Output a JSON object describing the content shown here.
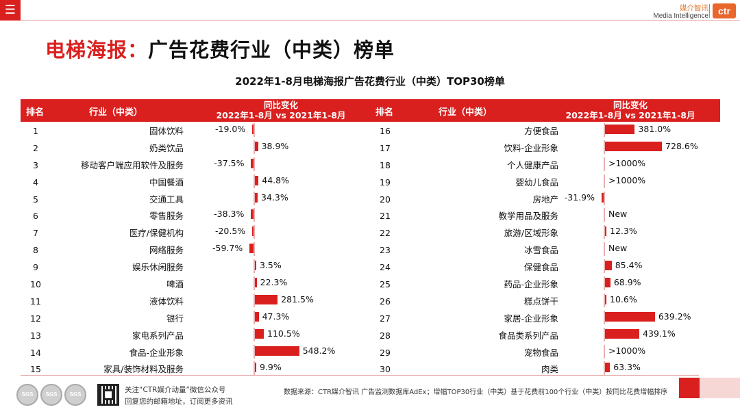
{
  "header": {
    "menu_icon": "hamburger-icon",
    "brand_cn": "媒介智讯",
    "brand_en": "Media Intelligence",
    "logo_text": "ctr",
    "accent": "#d9201f"
  },
  "title_red": "电梯海报：",
  "title_black": "广告花费行业（中类）榜单",
  "subtitle": "2022年1-8月电梯海报广告花费行业（中类）TOP30榜单",
  "columns": {
    "rank": "排名",
    "industry": "行业（中类）",
    "change_line1": "同比变化",
    "change_line2": "2022年1-8月 vs 2021年1-8月"
  },
  "chart_data": {
    "type": "bar",
    "title": "2022年1-8月电梯海报广告花费行业（中类）TOP30榜单",
    "xlabel": "同比变化 2022年1-8月 vs 2021年1-8月",
    "ylabel": "行业（中类）",
    "unit": "%",
    "left": [
      {
        "rank": "1",
        "industry": "固体饮料",
        "value": -19.0,
        "label": "-19.0%"
      },
      {
        "rank": "2",
        "industry": "奶类饮品",
        "value": 38.9,
        "label": "38.9%"
      },
      {
        "rank": "3",
        "industry": "移动客户端应用软件及服务",
        "value": -37.5,
        "label": "-37.5%"
      },
      {
        "rank": "4",
        "industry": "中国餐酒",
        "value": 44.8,
        "label": "44.8%"
      },
      {
        "rank": "5",
        "industry": "交通工具",
        "value": 34.3,
        "label": "34.3%"
      },
      {
        "rank": "6",
        "industry": "零售服务",
        "value": -38.3,
        "label": "-38.3%"
      },
      {
        "rank": "7",
        "industry": "医疗/保健机构",
        "value": -20.5,
        "label": "-20.5%"
      },
      {
        "rank": "8",
        "industry": "网络服务",
        "value": -59.7,
        "label": "-59.7%"
      },
      {
        "rank": "9",
        "industry": "娱乐休闲服务",
        "value": 3.5,
        "label": "3.5%"
      },
      {
        "rank": "10",
        "industry": "啤酒",
        "value": 22.3,
        "label": "22.3%"
      },
      {
        "rank": "11",
        "industry": "液体饮料",
        "value": 281.5,
        "label": "281.5%"
      },
      {
        "rank": "12",
        "industry": "银行",
        "value": 47.3,
        "label": "47.3%"
      },
      {
        "rank": "13",
        "industry": "家电系列产品",
        "value": 110.5,
        "label": "110.5%"
      },
      {
        "rank": "14",
        "industry": "食品-企业形象",
        "value": 548.2,
        "label": "548.2%"
      },
      {
        "rank": "15",
        "industry": "家具/装饰材料及服务",
        "value": 9.9,
        "label": "9.9%"
      }
    ],
    "right": [
      {
        "rank": "16",
        "industry": "方便食品",
        "value": 381.0,
        "label": "381.0%"
      },
      {
        "rank": "17",
        "industry": "饮料-企业形象",
        "value": 728.6,
        "label": "728.6%"
      },
      {
        "rank": "18",
        "industry": "个人健康产品",
        "value": null,
        "label": ">1000%"
      },
      {
        "rank": "19",
        "industry": "婴幼儿食品",
        "value": null,
        "label": ">1000%"
      },
      {
        "rank": "20",
        "industry": "房地产",
        "value": -31.9,
        "label": "-31.9%"
      },
      {
        "rank": "21",
        "industry": "教学用品及服务",
        "value": null,
        "label": "New"
      },
      {
        "rank": "22",
        "industry": "旅游/区域形象",
        "value": 12.3,
        "label": "12.3%"
      },
      {
        "rank": "23",
        "industry": "冰雪食品",
        "value": null,
        "label": "New"
      },
      {
        "rank": "24",
        "industry": "保健食品",
        "value": 85.4,
        "label": "85.4%"
      },
      {
        "rank": "25",
        "industry": "药品-企业形象",
        "value": 68.9,
        "label": "68.9%"
      },
      {
        "rank": "26",
        "industry": "糕点饼干",
        "value": 10.6,
        "label": "10.6%"
      },
      {
        "rank": "27",
        "industry": "家居-企业形象",
        "value": 639.2,
        "label": "639.2%"
      },
      {
        "rank": "28",
        "industry": "食品类系列产品",
        "value": 439.1,
        "label": "439.1%"
      },
      {
        "rank": "29",
        "industry": "宠物食品",
        "value": null,
        "label": ">1000%"
      },
      {
        "rank": "30",
        "industry": "肉类",
        "value": 63.3,
        "label": "63.3%"
      }
    ]
  },
  "footer": {
    "follow_line1": "关注“CTR媒介动量”微信公众号",
    "follow_line2": "回复您的邮箱地址，订阅更多资讯",
    "source": "数据来源：CTR媒介智讯 广告监测数据库AdEx；增幅TOP30行业（中类）基于花费前100个行业（中类）按同比花费增幅排序",
    "seal_label": "SGS"
  }
}
